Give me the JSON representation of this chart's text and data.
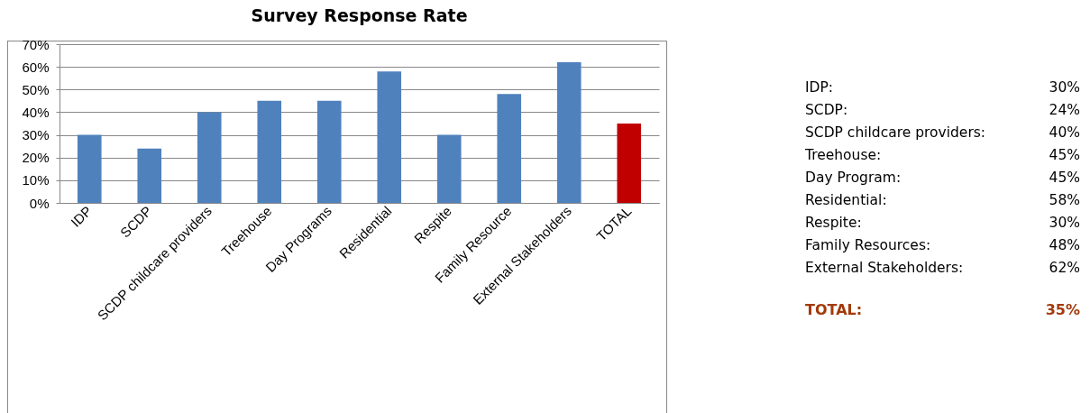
{
  "chart_data": {
    "type": "bar",
    "title": "Survey Response Rate",
    "categories": [
      "IDP",
      "SCDP",
      "SCDP childcare providers",
      "Treehouse",
      "Day Programs",
      "Residential",
      "Respite",
      "Family Resource",
      "External Stakeholders",
      "TOTAL"
    ],
    "values": [
      30,
      24,
      40,
      45,
      45,
      58,
      30,
      48,
      62,
      35
    ],
    "colors": [
      "#4f81bd",
      "#4f81bd",
      "#4f81bd",
      "#4f81bd",
      "#4f81bd",
      "#4f81bd",
      "#4f81bd",
      "#4f81bd",
      "#4f81bd",
      "#c00000"
    ],
    "ylim": [
      0,
      70
    ],
    "yticks": [
      {
        "value": 0,
        "label": "0%"
      },
      {
        "value": 10,
        "label": "10%"
      },
      {
        "value": 20,
        "label": "20%"
      },
      {
        "value": 30,
        "label": "30%"
      },
      {
        "value": 40,
        "label": "40%"
      },
      {
        "value": 50,
        "label": "50%"
      },
      {
        "value": 60,
        "label": "60%"
      },
      {
        "value": 70,
        "label": "70%"
      }
    ],
    "grid": "y",
    "annotations": [
      "IDP:",
      "30%",
      "SCDP:",
      "24%",
      "SCDP childcare providers:",
      "40%",
      "Treehouse:",
      "45%",
      "Day Program:",
      "45%",
      "Residential:",
      "58%",
      "Respite:",
      "30%",
      "Family Resources:",
      "48%",
      "External Stakeholders:",
      "62%",
      "TOTAL:",
      "35%"
    ]
  }
}
